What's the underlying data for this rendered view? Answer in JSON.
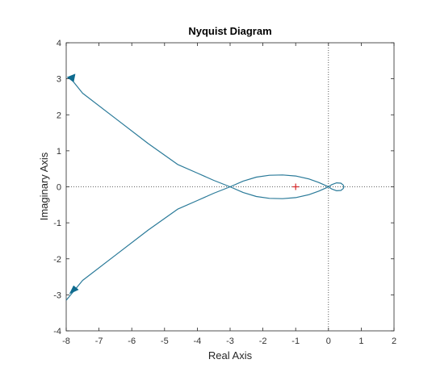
{
  "chart_data": {
    "type": "line",
    "title": "Nyquist Diagram",
    "xlabel": "Real Axis",
    "ylabel": "Imaginary Axis",
    "xlim": [
      -8,
      2
    ],
    "ylim": [
      -4,
      4
    ],
    "xticks": [
      -8,
      -7,
      -6,
      -5,
      -4,
      -3,
      -2,
      -1,
      0,
      1,
      2
    ],
    "yticks": [
      -4,
      -3,
      -2,
      -1,
      0,
      1,
      2,
      3,
      4
    ],
    "grid": false,
    "reference_lines": {
      "x": 0,
      "y": 0,
      "style": "dotted"
    },
    "critical_point": {
      "x": -1,
      "y": 0,
      "marker": "+"
    },
    "series": [
      {
        "values": [
          [
            -7.9,
            3.05
          ],
          [
            -7.5,
            2.6
          ],
          [
            -6.5,
            1.9
          ],
          [
            -5.5,
            1.2
          ],
          [
            -4.6,
            0.62
          ],
          [
            -4.0,
            0.38
          ],
          [
            -3.5,
            0.18
          ],
          [
            -3.0,
            0.0
          ],
          [
            -2.6,
            -0.16
          ],
          [
            -2.2,
            -0.27
          ],
          [
            -1.8,
            -0.32
          ],
          [
            -1.4,
            -0.33
          ],
          [
            -1.0,
            -0.3
          ],
          [
            -0.6,
            -0.22
          ],
          [
            -0.3,
            -0.12
          ],
          [
            -0.05,
            -0.02
          ],
          [
            0.0,
            0.0
          ],
          [
            0.1,
            0.06
          ],
          [
            0.25,
            0.11
          ],
          [
            0.38,
            0.1
          ],
          [
            0.45,
            0.05
          ],
          [
            0.47,
            0.0
          ],
          [
            0.45,
            -0.05
          ],
          [
            0.38,
            -0.1
          ],
          [
            0.25,
            -0.11
          ],
          [
            0.1,
            -0.06
          ],
          [
            0.0,
            0.0
          ],
          [
            -0.05,
            0.02
          ],
          [
            -0.3,
            0.12
          ],
          [
            -0.6,
            0.22
          ],
          [
            -1.0,
            0.3
          ],
          [
            -1.4,
            0.33
          ],
          [
            -1.8,
            0.32
          ],
          [
            -2.2,
            0.27
          ],
          [
            -2.6,
            0.16
          ],
          [
            -3.0,
            0.0
          ],
          [
            -3.5,
            -0.18
          ],
          [
            -4.0,
            -0.38
          ],
          [
            -4.6,
            -0.62
          ],
          [
            -5.5,
            -1.2
          ],
          [
            -6.5,
            -1.9
          ],
          [
            -7.5,
            -2.6
          ],
          [
            -8.0,
            -3.15
          ]
        ],
        "color": "#2a7a99"
      }
    ],
    "arrows": [
      {
        "x": -7.85,
        "y": 3.02,
        "direction": "up-left"
      },
      {
        "x": -7.75,
        "y": -2.88,
        "direction": "down-left"
      }
    ],
    "colors": {
      "axes": "#262626",
      "ticks": "#333333",
      "curve": "#2a7a99",
      "arrow": "#0e6b8f",
      "marker": "#d62728",
      "reference": "#333333"
    }
  }
}
